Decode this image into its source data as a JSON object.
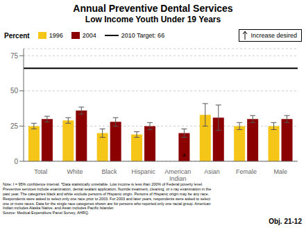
{
  "chart_data": {
    "type": "bar",
    "title": "Annual Preventive Dental Services",
    "subtitle": "Low Income Youth Under 19 Years",
    "ylabel": "Percent",
    "categories": [
      "Total",
      "White",
      "Black",
      "Hispanic",
      "American\nIndian",
      "Asian",
      "Female",
      "Male"
    ],
    "series": [
      {
        "name": "1996",
        "color": "#f5c518",
        "values": [
          25,
          29,
          20,
          19,
          null,
          33,
          25,
          25
        ],
        "errors": [
          2,
          2,
          3,
          2,
          null,
          8,
          2.5,
          2.5
        ]
      },
      {
        "name": "2004",
        "color": "#8b0000",
        "values": [
          30,
          36,
          28,
          25,
          20,
          31,
          30,
          30
        ],
        "errors": [
          2,
          2.5,
          3,
          2.5,
          3,
          9,
          2.5,
          2.5
        ]
      }
    ],
    "target_line": {
      "value": 66,
      "name": "2010 Target: 66"
    },
    "ylim": [
      0,
      80
    ],
    "yticks": [
      0,
      25,
      50,
      75
    ],
    "grid": true,
    "annotations": {
      "increase": "Increase desired",
      "asterisk": {
        "text": "*",
        "category": "American\nIndian",
        "series": "2004"
      },
      "footnote": "Note: I = 95% confidence interval. *Data statistically unreliable. Low income is less than 200% of Federal poverty level.\nPreventive services include examination, dental sealant application, fluoride treatment, cleaning, or x-ray examination in the\npast year. The categories black and white exclude persons of Hispanic origin. Persons of Hispanic origin may be any race.\nRespondents were asked to select only one race prior to 2003. For 2003 and later years, respondents were asked to select\none or more races. Data for the single race categories shown are for persons who reported only one racial group. American\nIndian includes Alaska Native, and Asian includes Pacific Islander.\nSource: Medical Expenditure Panel Survey, AHRQ.",
      "objective": "Obj. 21-12"
    }
  }
}
